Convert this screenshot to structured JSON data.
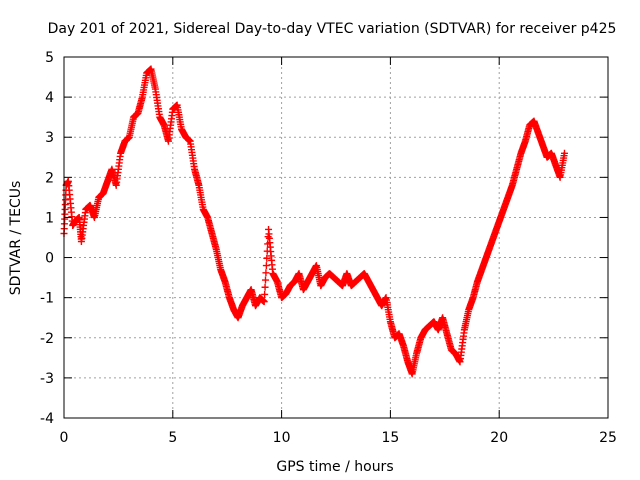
{
  "chart_data": {
    "type": "scatter",
    "title": "Day 201 of 2021, Sidereal Day-to-day VTEC variation (SDTVAR) for receiver p425",
    "xlabel": "GPS time / hours",
    "ylabel": "SDTVAR / TECUs",
    "xlim": [
      0,
      25
    ],
    "ylim": [
      -4,
      5
    ],
    "xticks": [
      0,
      5,
      10,
      15,
      20,
      25
    ],
    "yticks": [
      -4,
      -3,
      -2,
      -1,
      0,
      1,
      2,
      3,
      4,
      5
    ],
    "grid": true,
    "marker": "plus",
    "color": "#ff0000",
    "series": [
      {
        "name": "SDTVAR",
        "x": [
          0.0,
          0.1,
          0.2,
          0.4,
          0.5,
          0.7,
          0.8,
          1.0,
          1.2,
          1.4,
          1.6,
          1.8,
          2.0,
          2.2,
          2.4,
          2.6,
          2.8,
          3.0,
          3.2,
          3.4,
          3.6,
          3.8,
          4.0,
          4.2,
          4.4,
          4.6,
          4.8,
          5.0,
          5.2,
          5.4,
          5.6,
          5.8,
          6.0,
          6.2,
          6.4,
          6.6,
          6.8,
          7.0,
          7.2,
          7.4,
          7.6,
          7.8,
          8.0,
          8.2,
          8.4,
          8.6,
          8.8,
          9.0,
          9.2,
          9.4,
          9.6,
          9.8,
          10.0,
          10.2,
          10.4,
          10.6,
          10.8,
          11.0,
          11.2,
          11.4,
          11.6,
          11.8,
          12.0,
          12.2,
          12.4,
          12.6,
          12.8,
          13.0,
          13.2,
          13.4,
          13.6,
          13.8,
          14.0,
          14.2,
          14.4,
          14.6,
          14.8,
          15.0,
          15.2,
          15.4,
          15.6,
          15.8,
          16.0,
          16.2,
          16.4,
          16.6,
          16.8,
          17.0,
          17.2,
          17.4,
          17.6,
          17.8,
          18.0,
          18.2,
          18.4,
          18.6,
          18.8,
          19.0,
          19.2,
          19.4,
          19.6,
          19.8,
          20.0,
          20.2,
          20.4,
          20.6,
          20.8,
          21.0,
          21.2,
          21.4,
          21.6,
          21.8,
          22.0,
          22.2,
          22.4,
          22.6,
          22.8,
          23.0
        ],
        "y": [
          0.6,
          1.8,
          1.9,
          0.8,
          0.9,
          1.0,
          0.4,
          1.2,
          1.3,
          1.0,
          1.5,
          1.6,
          1.9,
          2.2,
          1.8,
          2.6,
          2.9,
          3.0,
          3.5,
          3.6,
          4.0,
          4.6,
          4.7,
          4.2,
          3.5,
          3.3,
          2.9,
          3.7,
          3.8,
          3.2,
          3.0,
          2.9,
          2.2,
          1.8,
          1.2,
          1.0,
          0.6,
          0.2,
          -0.3,
          -0.6,
          -1.0,
          -1.3,
          -1.5,
          -1.2,
          -1.0,
          -0.8,
          -1.2,
          -1.0,
          -1.1,
          0.7,
          -0.4,
          -0.6,
          -1.0,
          -0.9,
          -0.7,
          -0.6,
          -0.4,
          -0.8,
          -0.6,
          -0.4,
          -0.2,
          -0.7,
          -0.5,
          -0.4,
          -0.5,
          -0.6,
          -0.7,
          -0.4,
          -0.7,
          -0.6,
          -0.5,
          -0.4,
          -0.6,
          -0.8,
          -1.0,
          -1.2,
          -1.0,
          -1.6,
          -2.0,
          -1.9,
          -2.2,
          -2.6,
          -2.9,
          -2.4,
          -2.0,
          -1.8,
          -1.7,
          -1.6,
          -1.8,
          -1.5,
          -1.9,
          -2.3,
          -2.4,
          -2.6,
          -1.8,
          -1.3,
          -1.0,
          -0.6,
          -0.3,
          0.0,
          0.3,
          0.6,
          0.9,
          1.2,
          1.5,
          1.8,
          2.2,
          2.6,
          2.9,
          3.3,
          3.4,
          3.1,
          2.8,
          2.5,
          2.6,
          2.3,
          2.0,
          2.6
        ]
      }
    ]
  }
}
